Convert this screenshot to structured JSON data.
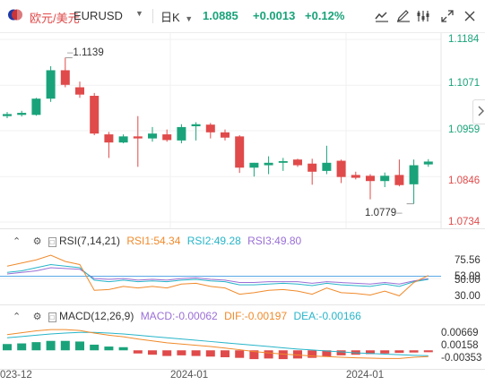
{
  "header": {
    "symbol_name": "欧元/美元",
    "symbol_code": "EURUSD",
    "period": "日K",
    "price": "1.0885",
    "change": "+0.0013",
    "change_pct": "+0.12%"
  },
  "main_chart": {
    "y_labels": [
      "1.1184",
      "1.1071",
      "1.0959",
      "1.0846",
      "1.0734"
    ],
    "high_label": "1.1139",
    "low_label": "1.0779",
    "candles": [
      {
        "o": 1.0995,
        "h": 1.1005,
        "l": 1.099,
        "c": 1.1
      },
      {
        "o": 1.0998,
        "h": 1.1008,
        "l": 1.0994,
        "c": 1.1003
      },
      {
        "o": 1.0998,
        "h": 1.104,
        "l": 1.0996,
        "c": 1.1038
      },
      {
        "o": 1.1038,
        "h": 1.1118,
        "l": 1.103,
        "c": 1.1108
      },
      {
        "o": 1.1108,
        "h": 1.1139,
        "l": 1.1066,
        "c": 1.1072
      },
      {
        "o": 1.1066,
        "h": 1.108,
        "l": 1.104,
        "c": 1.1048
      },
      {
        "o": 1.1045,
        "h": 1.1052,
        "l": 1.0948,
        "c": 1.0952
      },
      {
        "o": 1.095,
        "h": 1.0956,
        "l": 1.0892,
        "c": 1.093
      },
      {
        "o": 1.093,
        "h": 1.095,
        "l": 1.0928,
        "c": 1.0945
      },
      {
        "o": 1.0945,
        "h": 1.0995,
        "l": 1.087,
        "c": 1.094
      },
      {
        "o": 1.094,
        "h": 1.0968,
        "l": 1.0932,
        "c": 1.0952
      },
      {
        "o": 1.095,
        "h": 1.0962,
        "l": 1.0932,
        "c": 1.0936
      },
      {
        "o": 1.0935,
        "h": 1.0975,
        "l": 1.0928,
        "c": 1.0968
      },
      {
        "o": 1.097,
        "h": 1.098,
        "l": 1.0935,
        "c": 1.0975
      },
      {
        "o": 1.0974,
        "h": 1.0978,
        "l": 1.094,
        "c": 1.0955
      },
      {
        "o": 1.0955,
        "h": 1.0962,
        "l": 1.0935,
        "c": 1.0942
      },
      {
        "o": 1.0945,
        "h": 1.0948,
        "l": 1.0855,
        "c": 1.0868
      },
      {
        "o": 1.0868,
        "h": 1.088,
        "l": 1.0846,
        "c": 1.088
      },
      {
        "o": 1.0874,
        "h": 1.0896,
        "l": 1.0852,
        "c": 1.088
      },
      {
        "o": 1.088,
        "h": 1.0892,
        "l": 1.086,
        "c": 1.0884
      },
      {
        "o": 1.0888,
        "h": 1.089,
        "l": 1.087,
        "c": 1.0874
      },
      {
        "o": 1.0878,
        "h": 1.089,
        "l": 1.0826,
        "c": 1.0858
      },
      {
        "o": 1.086,
        "h": 1.0922,
        "l": 1.0852,
        "c": 1.088
      },
      {
        "o": 1.0885,
        "h": 1.0888,
        "l": 1.083,
        "c": 1.0845
      },
      {
        "o": 1.085,
        "h": 1.0858,
        "l": 1.0839,
        "c": 1.0843
      },
      {
        "o": 1.0848,
        "h": 1.0852,
        "l": 1.079,
        "c": 1.0835
      },
      {
        "o": 1.0835,
        "h": 1.0856,
        "l": 1.082,
        "c": 1.0848
      },
      {
        "o": 1.085,
        "h": 1.0888,
        "l": 1.0822,
        "c": 1.0825
      },
      {
        "o": 1.0827,
        "h": 1.0888,
        "l": 1.0779,
        "c": 1.0874
      },
      {
        "o": 1.0876,
        "h": 1.0889,
        "l": 1.087,
        "c": 1.0883
      }
    ]
  },
  "rsi": {
    "title": "RSI(7,14,21)",
    "rsi1": "RSI1:54.34",
    "rsi2": "RSI2:49.28",
    "rsi3": "RSI3:49.80",
    "y_labels": [
      "75.56",
      "50.00",
      "30.00"
    ],
    "y_overlap": "53.09",
    "rsi1_values": [
      66,
      70,
      74,
      80,
      72,
      68,
      35,
      36,
      40,
      38,
      40,
      38,
      43,
      44,
      40,
      38,
      30,
      32,
      35,
      36,
      34,
      30,
      38,
      32,
      31,
      29,
      34,
      28,
      45,
      54
    ],
    "rsi2_values": [
      58,
      60,
      64,
      68,
      66,
      64,
      48,
      46,
      48,
      46,
      47,
      46,
      48,
      49,
      47,
      46,
      42,
      42,
      43,
      44,
      43,
      41,
      44,
      42,
      41,
      40,
      43,
      40,
      46,
      49
    ],
    "rsi3_values": [
      56,
      58,
      60,
      64,
      63,
      62,
      50,
      49,
      50,
      48,
      49,
      48,
      50,
      51,
      49,
      48,
      45,
      45,
      46,
      46,
      46,
      44,
      46,
      45,
      44,
      43,
      45,
      43,
      47,
      50
    ]
  },
  "macd": {
    "title": "MACD(12,26,9)",
    "macd_val": "MACD:-0.00062",
    "dif_val": "DIF:-0.00197",
    "dea_val": "DEA:-0.00166",
    "y_labels": [
      "0.00669",
      "0.00158",
      "-0.00353"
    ],
    "hist": [
      0.002,
      0.0022,
      0.0026,
      0.003,
      0.003,
      0.0028,
      0.0018,
      0.0012,
      0.001,
      -0.001,
      -0.0014,
      -0.0018,
      -0.0016,
      -0.0018,
      -0.002,
      -0.0022,
      -0.0024,
      -0.0028,
      -0.0026,
      -0.0028,
      -0.0026,
      -0.0024,
      -0.002,
      -0.0016,
      -0.0014,
      -0.0012,
      -0.001,
      -0.0008,
      -0.0007,
      -0.0006
    ],
    "dif": [
      0.005,
      0.0056,
      0.0062,
      0.0066,
      0.0066,
      0.0063,
      0.0055,
      0.0048,
      0.0043,
      0.0036,
      0.003,
      0.0024,
      0.002,
      0.0016,
      0.0012,
      0.0007,
      0.0002,
      -0.0004,
      -0.0008,
      -0.0012,
      -0.0015,
      -0.0018,
      -0.002,
      -0.0022,
      -0.0024,
      -0.0025,
      -0.0026,
      -0.0026,
      -0.0022,
      -0.002
    ],
    "dea": [
      0.004,
      0.0044,
      0.0048,
      0.0052,
      0.0055,
      0.0057,
      0.0057,
      0.0055,
      0.0052,
      0.0048,
      0.0044,
      0.004,
      0.0036,
      0.0032,
      0.0028,
      0.0024,
      0.002,
      0.0016,
      0.0012,
      0.0008,
      0.0004,
      0.0001,
      -0.0002,
      -0.0005,
      -0.0008,
      -0.001,
      -0.0012,
      -0.0014,
      -0.0016,
      -0.0017
    ]
  },
  "x_axis": [
    "023-12",
    "2024-01",
    "2024-01"
  ]
}
